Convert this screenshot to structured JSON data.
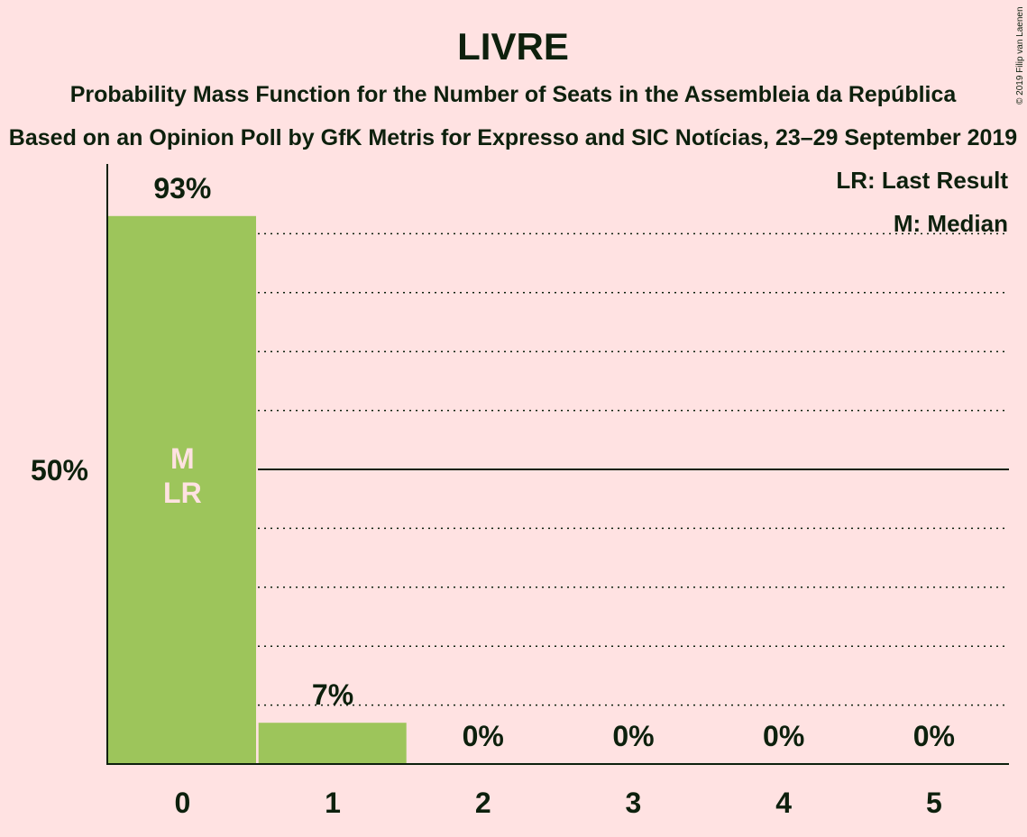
{
  "title": "LIVRE",
  "subtitle": "Probability Mass Function for the Number of Seats in the Assembleia da República",
  "subtitle2": "Based on an Opinion Poll by GfK Metris for Expresso and SIC Notícias, 23–29 September 2019",
  "copyright": "© 2019 Filip van Laenen",
  "legend": {
    "last_result": "LR: Last Result",
    "median": "M: Median"
  },
  "colors": {
    "background": "#ffe2e2",
    "bar": "#9dc55b",
    "text": "#0d200d"
  },
  "chart_data": {
    "type": "bar",
    "categories": [
      "0",
      "1",
      "2",
      "3",
      "4",
      "5"
    ],
    "values": [
      93,
      7,
      0,
      0,
      0,
      0
    ],
    "value_labels": [
      "93%",
      "7%",
      "0%",
      "0%",
      "0%",
      "0%"
    ],
    "ylim": [
      0,
      100
    ],
    "y_tick_label": "50%",
    "y_tick_value": 50,
    "gridlines": [
      10,
      20,
      30,
      40,
      60,
      70,
      80,
      90
    ],
    "median_marker": "M",
    "last_result_marker": "LR",
    "median_category": "0",
    "last_result_category": "0"
  }
}
